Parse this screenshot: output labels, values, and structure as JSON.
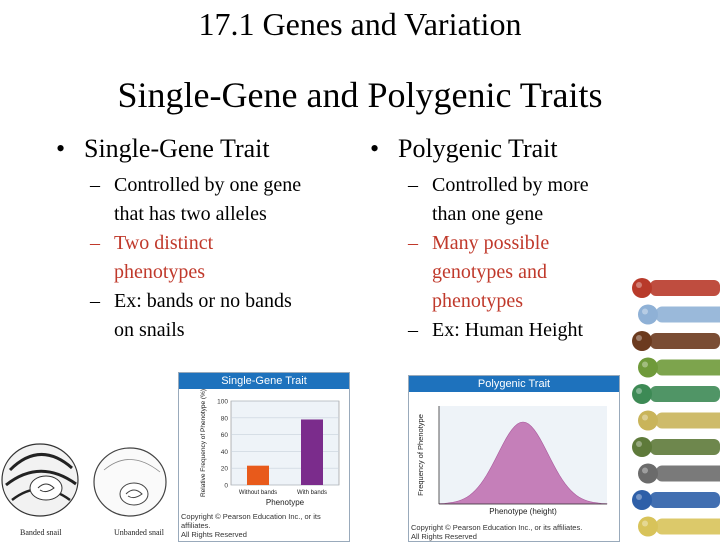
{
  "header": {
    "section_title": "17.1 Genes and Variation"
  },
  "slide": {
    "title": "Single-Gene and Polygenic Traits"
  },
  "left_column": {
    "bullet": "Single-Gene Trait",
    "sub_items": [
      {
        "text_a": "Controlled by one gene",
        "text_b": "that has two alleles",
        "color": "#000000"
      },
      {
        "text_a": "Two distinct",
        "text_b": "phenotypes",
        "color": "#c0392b"
      },
      {
        "text_a": "Ex: bands or no bands",
        "text_b": "on snails",
        "color": "#000000"
      }
    ]
  },
  "right_column": {
    "bullet": "Polygenic Trait",
    "sub_items": [
      {
        "lines": [
          "Controlled by more",
          "than one gene"
        ],
        "color": "#000000"
      },
      {
        "lines": [
          "Many possible",
          "genotypes and",
          "phenotypes"
        ],
        "color": "#c0392b"
      },
      {
        "lines": [
          "Ex:  Human Height"
        ],
        "color": "#000000"
      }
    ]
  },
  "single_gene_figure": {
    "header": "Single-Gene Trait",
    "copyright_1": "Copyright © Pearson Education Inc., or its affiliates.",
    "copyright_2": "All Rights Reserved",
    "snail_captions": [
      "Banded snail",
      "Unbanded snail"
    ],
    "chart_data": {
      "type": "bar",
      "categories": [
        "Without bands",
        "With bands"
      ],
      "values": [
        23,
        78
      ],
      "colors": [
        "#e85a1b",
        "#7b2c8c"
      ],
      "ylabel": "Relative Frequency of Phenotype (%)",
      "xlabel": "Phenotype",
      "ylim": [
        0,
        100
      ],
      "yticks": [
        0,
        20,
        40,
        60,
        80,
        100
      ]
    }
  },
  "polygenic_figure": {
    "header": "Polygenic Trait",
    "copyright_1": "Copyright © Pearson Education Inc., or its affiliates.",
    "copyright_2": "All Rights Reserved",
    "chart_data": {
      "type": "area",
      "ylabel": "Frequency of Phenotype",
      "xlabel": "Phenotype (height)",
      "fill": "#c57fb9",
      "curve": "bell"
    }
  },
  "figurines": {
    "colors": [
      "#b83a2a",
      "#8fb1d6",
      "#6b3a1e",
      "#6f9a3a",
      "#3d8a55",
      "#c9b45a",
      "#5e7a3a",
      "#6b6b6b",
      "#2e5fa8",
      "#d8c35a"
    ]
  }
}
